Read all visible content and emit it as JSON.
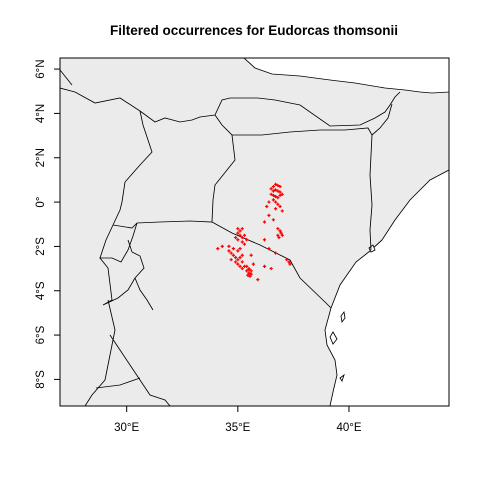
{
  "chart_data": {
    "type": "scatter",
    "title": "Filtered occurrences for Eudorcas thomsonii",
    "xlim": [
      27.0,
      44.5
    ],
    "ylim": [
      -9.2,
      6.5
    ],
    "x_ticks": [
      30,
      35,
      40
    ],
    "x_tick_labels": [
      "30°E",
      "35°E",
      "40°E"
    ],
    "y_ticks": [
      -8,
      -6,
      -4,
      -2,
      0,
      2,
      4,
      6
    ],
    "y_tick_labels": [
      "8°S",
      "6°S",
      "4°S",
      "2°S",
      "0°",
      "2°N",
      "4°N",
      "6°N"
    ],
    "land_color": "#ebebeb",
    "point_color": "#ff0000",
    "series": [
      {
        "marker": "plus",
        "points": [
          [
            36.6,
            0.7
          ],
          [
            36.7,
            0.8
          ],
          [
            36.8,
            0.75
          ],
          [
            36.9,
            0.7
          ],
          [
            36.5,
            0.6
          ],
          [
            36.6,
            0.5
          ],
          [
            36.7,
            0.55
          ],
          [
            36.8,
            0.5
          ],
          [
            36.9,
            0.45
          ],
          [
            36.5,
            0.35
          ],
          [
            36.6,
            0.3
          ],
          [
            36.7,
            0.25
          ],
          [
            36.8,
            0.2
          ],
          [
            36.9,
            0.3
          ],
          [
            37.0,
            0.35
          ],
          [
            36.6,
            0.1
          ],
          [
            36.7,
            0.0
          ],
          [
            36.8,
            -0.1
          ],
          [
            36.4,
            0.0
          ],
          [
            36.3,
            -0.2
          ],
          [
            36.7,
            -0.3
          ],
          [
            36.9,
            -0.2
          ],
          [
            37.0,
            -0.4
          ],
          [
            36.4,
            -0.6
          ],
          [
            36.6,
            -0.8
          ],
          [
            36.2,
            -0.9
          ],
          [
            36.8,
            -1.2
          ],
          [
            36.9,
            -1.3
          ],
          [
            36.95,
            -1.4
          ],
          [
            36.8,
            -1.5
          ],
          [
            36.85,
            -1.6
          ],
          [
            37.0,
            -1.5
          ],
          [
            36.2,
            -1.7
          ],
          [
            36.4,
            -2.1
          ],
          [
            36.7,
            -2.3
          ],
          [
            37.2,
            -2.6
          ],
          [
            37.3,
            -2.7
          ],
          [
            37.35,
            -2.8
          ],
          [
            35.0,
            -1.2
          ],
          [
            35.1,
            -1.3
          ],
          [
            35.2,
            -1.2
          ],
          [
            35.0,
            -1.4
          ],
          [
            35.1,
            -1.5
          ],
          [
            35.2,
            -1.6
          ],
          [
            35.3,
            -1.5
          ],
          [
            34.9,
            -1.6
          ],
          [
            35.0,
            -1.7
          ],
          [
            35.2,
            -1.8
          ],
          [
            35.3,
            -1.9
          ],
          [
            35.4,
            -1.7
          ],
          [
            35.1,
            -2.1
          ],
          [
            34.8,
            -2.1
          ],
          [
            34.6,
            -2.0
          ],
          [
            34.3,
            -2.0
          ],
          [
            34.1,
            -2.1
          ],
          [
            34.7,
            -2.3
          ],
          [
            34.8,
            -2.4
          ],
          [
            34.9,
            -2.5
          ],
          [
            35.0,
            -2.6
          ],
          [
            35.1,
            -2.5
          ],
          [
            35.2,
            -2.7
          ],
          [
            34.9,
            -2.7
          ],
          [
            35.0,
            -2.8
          ],
          [
            35.1,
            -2.9
          ],
          [
            35.2,
            -3.0
          ],
          [
            35.3,
            -2.9
          ],
          [
            34.7,
            -2.6
          ],
          [
            34.6,
            -2.2
          ],
          [
            35.0,
            -2.2
          ],
          [
            35.2,
            -2.4
          ],
          [
            35.4,
            -2.9
          ],
          [
            35.5,
            -3.0
          ],
          [
            35.6,
            -3.1
          ],
          [
            35.4,
            -3.1
          ],
          [
            35.5,
            -3.2
          ],
          [
            35.6,
            -3.25
          ],
          [
            35.45,
            -3.3
          ],
          [
            35.55,
            -3.35
          ],
          [
            35.5,
            -3.05
          ],
          [
            35.7,
            -2.8
          ],
          [
            36.2,
            -2.9
          ],
          [
            36.5,
            -3.0
          ],
          [
            35.9,
            -3.5
          ],
          [
            35.6,
            -2.4
          ]
        ]
      }
    ]
  }
}
